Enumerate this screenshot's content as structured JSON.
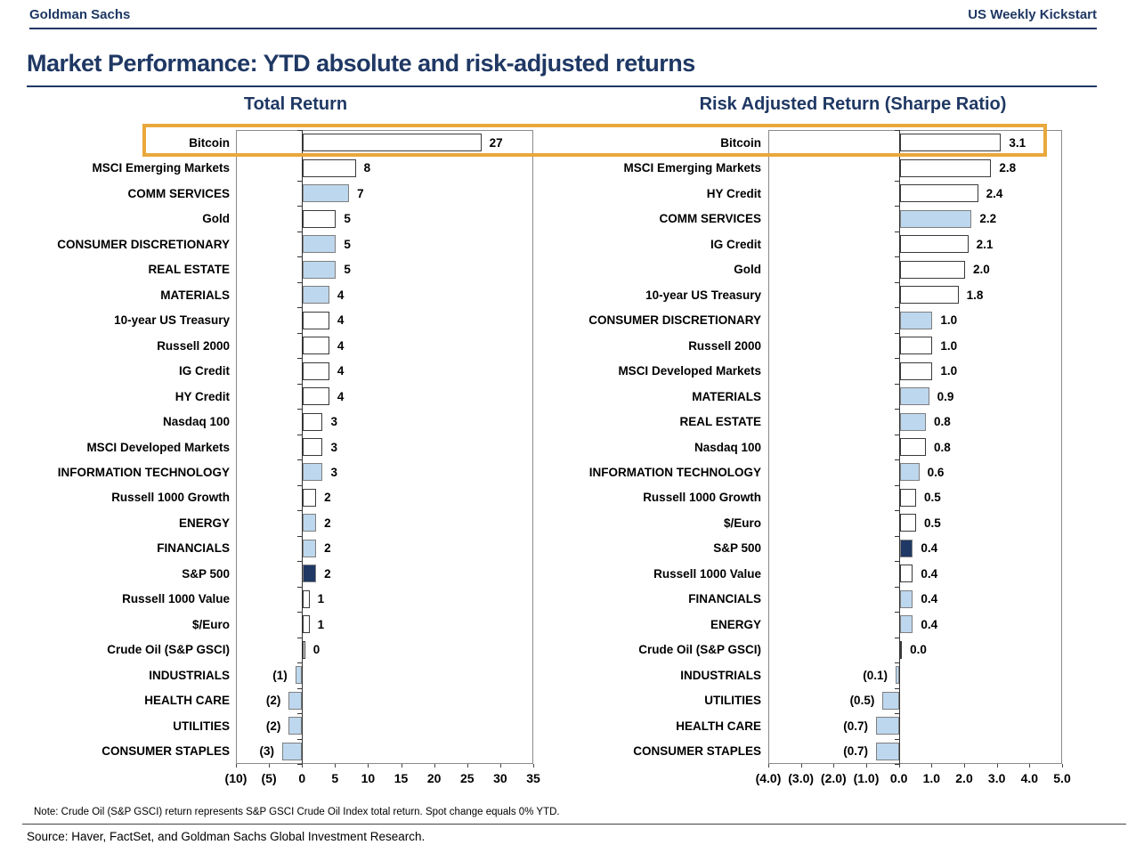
{
  "header": {
    "brand": "Goldman Sachs",
    "publication": "US Weekly Kickstart"
  },
  "page_title": "Market Performance: YTD absolute and risk-adjusted returns",
  "footer": {
    "note": "Note: Crude Oil (S&P GSCI) return represents S&P GSCI Crude Oil Index total return. Spot change equals 0% YTD.",
    "source": "Source: Haver, FactSet, and Goldman Sachs Global Investment Research."
  },
  "colors": {
    "navy_text": "#1F3864",
    "bar_light_blue": "#BDD7EE",
    "bar_dark_navy": "#1F3864",
    "bar_white": "#FFFFFF",
    "highlight_orange": "#E9A83C"
  },
  "annotations": {
    "highlight_box": {
      "target": "Bitcoin row in both charts",
      "color": "#E9A83C"
    }
  },
  "chart_data": [
    {
      "type": "bar",
      "orientation": "horizontal",
      "title": "Total Return",
      "xlim": [
        -10,
        35
      ],
      "xtick_values": [
        -10,
        -5,
        0,
        5,
        10,
        15,
        20,
        25,
        30,
        35
      ],
      "xtick_labels": [
        "(10)",
        "(5)",
        "0",
        "5",
        "10",
        "15",
        "20",
        "25",
        "30",
        "35"
      ],
      "grid": false,
      "legend": "none",
      "rows": [
        {
          "label": "Bitcoin",
          "value": 27,
          "value_label": "27",
          "style": "white"
        },
        {
          "label": "MSCI Emerging Markets",
          "value": 8,
          "value_label": "8",
          "style": "white"
        },
        {
          "label": "COMM SERVICES",
          "value": 7,
          "value_label": "7",
          "style": "blue"
        },
        {
          "label": "Gold",
          "value": 5,
          "value_label": "5",
          "style": "white"
        },
        {
          "label": "CONSUMER DISCRETIONARY",
          "value": 5,
          "value_label": "5",
          "style": "blue"
        },
        {
          "label": "REAL ESTATE",
          "value": 5,
          "value_label": "5",
          "style": "blue"
        },
        {
          "label": "MATERIALS",
          "value": 4,
          "value_label": "4",
          "style": "blue"
        },
        {
          "label": "10-year US Treasury",
          "value": 4,
          "value_label": "4",
          "style": "white"
        },
        {
          "label": "Russell 2000",
          "value": 4,
          "value_label": "4",
          "style": "white"
        },
        {
          "label": "IG Credit",
          "value": 4,
          "value_label": "4",
          "style": "white"
        },
        {
          "label": "HY Credit",
          "value": 4,
          "value_label": "4",
          "style": "white"
        },
        {
          "label": "Nasdaq 100",
          "value": 3,
          "value_label": "3",
          "style": "white"
        },
        {
          "label": "MSCI Developed Markets",
          "value": 3,
          "value_label": "3",
          "style": "white"
        },
        {
          "label": "INFORMATION TECHNOLOGY",
          "value": 3,
          "value_label": "3",
          "style": "blue"
        },
        {
          "label": "Russell 1000 Growth",
          "value": 2,
          "value_label": "2",
          "style": "white"
        },
        {
          "label": "ENERGY",
          "value": 2,
          "value_label": "2",
          "style": "blue"
        },
        {
          "label": "FINANCIALS",
          "value": 2,
          "value_label": "2",
          "style": "blue"
        },
        {
          "label": "S&P 500",
          "value": 2,
          "value_label": "2",
          "style": "navy"
        },
        {
          "label": "Russell 1000 Value",
          "value": 1,
          "value_label": "1",
          "style": "white"
        },
        {
          "label": "$/Euro",
          "value": 1,
          "value_label": "1",
          "style": "white"
        },
        {
          "label": "Crude Oil (S&P GSCI)",
          "value": 0,
          "value_label": "0",
          "style": "white"
        },
        {
          "label": "INDUSTRIALS",
          "value": -1,
          "value_label": "(1)",
          "style": "blue"
        },
        {
          "label": "HEALTH CARE",
          "value": -2,
          "value_label": "(2)",
          "style": "blue"
        },
        {
          "label": "UTILITIES",
          "value": -2,
          "value_label": "(2)",
          "style": "blue"
        },
        {
          "label": "CONSUMER STAPLES",
          "value": -3,
          "value_label": "(3)",
          "style": "blue"
        }
      ]
    },
    {
      "type": "bar",
      "orientation": "horizontal",
      "title": "Risk Adjusted Return (Sharpe Ratio)",
      "xlim": [
        -4,
        5
      ],
      "xtick_values": [
        -4,
        -3,
        -2,
        -1,
        0,
        1,
        2,
        3,
        4,
        5
      ],
      "xtick_labels": [
        "(4.0)",
        "(3.0)",
        "(2.0)",
        "(1.0)",
        "0.0",
        "1.0",
        "2.0",
        "3.0",
        "4.0",
        "5.0"
      ],
      "grid": false,
      "legend": "none",
      "rows": [
        {
          "label": "Bitcoin",
          "value": 3.1,
          "value_label": "3.1",
          "style": "white"
        },
        {
          "label": "MSCI Emerging Markets",
          "value": 2.8,
          "value_label": "2.8",
          "style": "white"
        },
        {
          "label": "HY Credit",
          "value": 2.4,
          "value_label": "2.4",
          "style": "white"
        },
        {
          "label": "COMM SERVICES",
          "value": 2.2,
          "value_label": "2.2",
          "style": "blue"
        },
        {
          "label": "IG Credit",
          "value": 2.1,
          "value_label": "2.1",
          "style": "white"
        },
        {
          "label": "Gold",
          "value": 2.0,
          "value_label": "2.0",
          "style": "white"
        },
        {
          "label": "10-year US Treasury",
          "value": 1.8,
          "value_label": "1.8",
          "style": "white"
        },
        {
          "label": "CONSUMER DISCRETIONARY",
          "value": 1.0,
          "value_label": "1.0",
          "style": "blue"
        },
        {
          "label": "Russell 2000",
          "value": 1.0,
          "value_label": "1.0",
          "style": "white"
        },
        {
          "label": "MSCI Developed Markets",
          "value": 1.0,
          "value_label": "1.0",
          "style": "white"
        },
        {
          "label": "MATERIALS",
          "value": 0.9,
          "value_label": "0.9",
          "style": "blue"
        },
        {
          "label": "REAL ESTATE",
          "value": 0.8,
          "value_label": "0.8",
          "style": "blue"
        },
        {
          "label": "Nasdaq 100",
          "value": 0.8,
          "value_label": "0.8",
          "style": "white"
        },
        {
          "label": "INFORMATION TECHNOLOGY",
          "value": 0.6,
          "value_label": "0.6",
          "style": "blue"
        },
        {
          "label": "Russell 1000 Growth",
          "value": 0.5,
          "value_label": "0.5",
          "style": "white"
        },
        {
          "label": "$/Euro",
          "value": 0.5,
          "value_label": "0.5",
          "style": "white"
        },
        {
          "label": "S&P 500",
          "value": 0.4,
          "value_label": "0.4",
          "style": "navy"
        },
        {
          "label": "Russell 1000 Value",
          "value": 0.4,
          "value_label": "0.4",
          "style": "white"
        },
        {
          "label": "FINANCIALS",
          "value": 0.4,
          "value_label": "0.4",
          "style": "blue"
        },
        {
          "label": "ENERGY",
          "value": 0.4,
          "value_label": "0.4",
          "style": "blue"
        },
        {
          "label": "Crude Oil (S&P GSCI)",
          "value": 0.0,
          "value_label": "0.0",
          "style": "white"
        },
        {
          "label": "INDUSTRIALS",
          "value": -0.1,
          "value_label": "(0.1)",
          "style": "blue"
        },
        {
          "label": "UTILITIES",
          "value": -0.5,
          "value_label": "(0.5)",
          "style": "blue"
        },
        {
          "label": "HEALTH CARE",
          "value": -0.7,
          "value_label": "(0.7)",
          "style": "blue"
        },
        {
          "label": "CONSUMER STAPLES",
          "value": -0.7,
          "value_label": "(0.7)",
          "style": "blue"
        }
      ]
    }
  ]
}
